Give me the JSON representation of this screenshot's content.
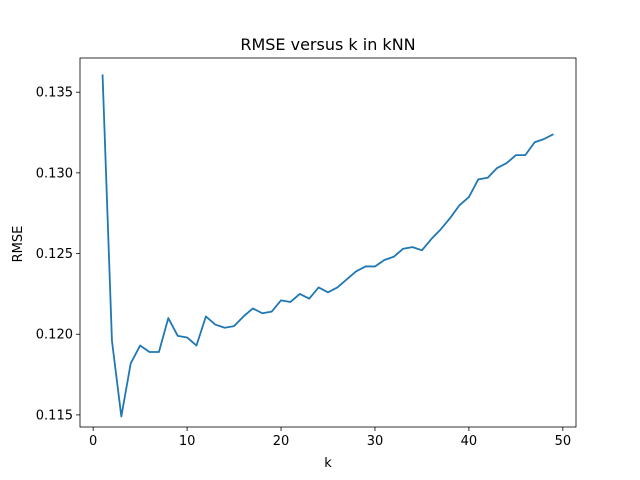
{
  "chart_data": {
    "type": "line",
    "title": "RMSE versus k in kNN",
    "xlabel": "k",
    "ylabel": "RMSE",
    "xlim": [
      -1.4,
      51.4
    ],
    "ylim": [
      0.11425,
      0.13712
    ],
    "xticks": [
      0,
      10,
      20,
      30,
      40,
      50
    ],
    "xtick_labels": [
      "0",
      "10",
      "20",
      "30",
      "40",
      "50"
    ],
    "yticks": [
      0.115,
      0.12,
      0.125,
      0.13,
      0.135
    ],
    "ytick_labels": [
      "0.115",
      "0.120",
      "0.125",
      "0.130",
      "0.135"
    ],
    "grid": false,
    "series": [
      {
        "color": "#1f77b4",
        "x": [
          1,
          2,
          3,
          4,
          5,
          6,
          7,
          8,
          9,
          10,
          11,
          12,
          13,
          14,
          15,
          16,
          17,
          18,
          19,
          20,
          21,
          22,
          23,
          24,
          25,
          26,
          27,
          28,
          29,
          30,
          31,
          32,
          33,
          34,
          35,
          36,
          37,
          38,
          39,
          40,
          41,
          42,
          43,
          44,
          45,
          46,
          47,
          48,
          49
        ],
        "y": [
          0.1361,
          0.1196,
          0.1149,
          0.1182,
          0.1193,
          0.1189,
          0.1189,
          0.121,
          0.1199,
          0.1198,
          0.1193,
          0.1211,
          0.1206,
          0.1204,
          0.1205,
          0.1211,
          0.1216,
          0.1213,
          0.1214,
          0.1221,
          0.122,
          0.1225,
          0.1222,
          0.1229,
          0.1226,
          0.1229,
          0.1234,
          0.1239,
          0.1242,
          0.1242,
          0.1246,
          0.1248,
          0.1253,
          0.1254,
          0.1252,
          0.1259,
          0.1265,
          0.1272,
          0.128,
          0.1285,
          0.1296,
          0.1297,
          0.1303,
          0.1306,
          0.1311,
          0.1311,
          0.1319,
          0.1321,
          0.1324
        ]
      }
    ]
  }
}
